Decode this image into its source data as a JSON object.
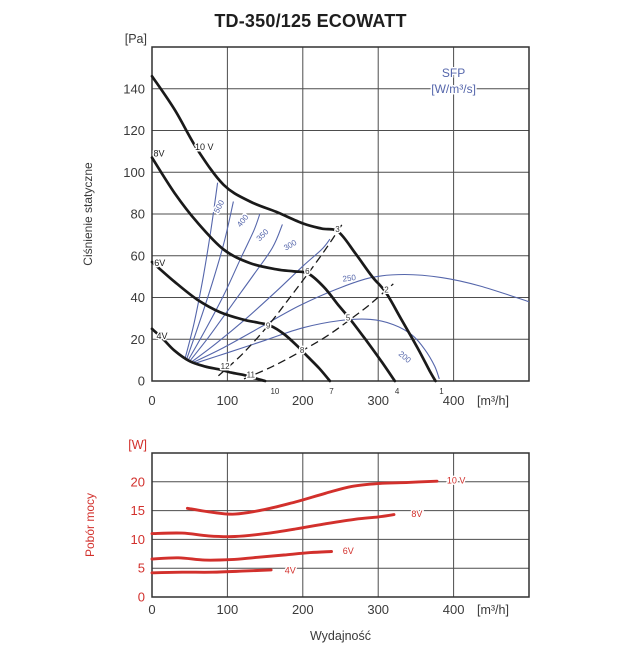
{
  "title": "TD-350/125 ECOWATT",
  "colors": {
    "fan_curve": "#1a1a1a",
    "sfp_blue": "#5566ab",
    "power_red": "#d2302c",
    "grid": "#4d4d4d",
    "border": "#303030",
    "tick_text": "#3a3a3a"
  },
  "chart_data": [
    {
      "type": "line",
      "name": "static-pressure-chart",
      "ylabel": "Ciśnienie statyczne",
      "y_unit": "[Pa]",
      "x_unit": "[m³/h]",
      "xlim": [
        0,
        500
      ],
      "ylim": [
        0,
        160
      ],
      "x_ticks": [
        0,
        100,
        200,
        300,
        400
      ],
      "y_ticks": [
        0,
        20,
        40,
        60,
        80,
        100,
        120,
        140
      ],
      "x_grid_step": 100,
      "y_grid_step": 20,
      "grid": true,
      "legend": {
        "title": "SFP",
        "unit": "[W/m³/s]",
        "position": "top-right"
      },
      "series": [
        {
          "name": "10 V",
          "points": [
            [
              0,
              146
            ],
            [
              30,
              130
            ],
            [
              60,
              111
            ],
            [
              95,
              94
            ],
            [
              130,
              86
            ],
            [
              165,
              81
            ],
            [
              200,
              75.5
            ],
            [
              225,
              73
            ],
            [
              247,
              71.5
            ],
            [
              270,
              61
            ],
            [
              292,
              50
            ],
            [
              310,
              42.5
            ],
            [
              330,
              30
            ],
            [
              352,
              16
            ],
            [
              368,
              5
            ],
            [
              376,
              0
            ]
          ]
        },
        {
          "name": "8V",
          "points": [
            [
              0,
              107
            ],
            [
              30,
              90
            ],
            [
              60,
              76
            ],
            [
              95,
              63
            ],
            [
              130,
              56.5
            ],
            [
              165,
              53.5
            ],
            [
              188,
              52.5
            ],
            [
              207,
              51.5
            ],
            [
              228,
              45
            ],
            [
              248,
              36
            ],
            [
              263,
              29.5
            ],
            [
              285,
              19
            ],
            [
              305,
              9
            ],
            [
              322,
              0
            ]
          ]
        },
        {
          "name": "6V",
          "points": [
            [
              0,
              57
            ],
            [
              30,
              47.5
            ],
            [
              60,
              39
            ],
            [
              90,
              33
            ],
            [
              120,
              29.5
            ],
            [
              140,
              28
            ],
            [
              157,
              26.5
            ],
            [
              175,
              22.5
            ],
            [
              192,
              17
            ],
            [
              207,
              11.5
            ],
            [
              222,
              6
            ],
            [
              236,
              0
            ]
          ]
        },
        {
          "name": "4V",
          "points": [
            [
              0,
              25
            ],
            [
              15,
              20
            ],
            [
              30,
              14.5
            ],
            [
              50,
              9.5
            ],
            [
              70,
              7
            ],
            [
              90,
              5.5
            ],
            [
              105,
              4
            ],
            [
              120,
              3
            ],
            [
              135,
              1.5
            ],
            [
              150,
              0
            ]
          ]
        }
      ],
      "curve_labels": [
        {
          "text": "10 V",
          "x": 57,
          "y": 112
        },
        {
          "text": "8V",
          "x": 2,
          "y": 109
        },
        {
          "text": "6V",
          "x": 3,
          "y": 56.5
        },
        {
          "text": "4V",
          "x": 6,
          "y": 21.5
        }
      ],
      "sfp_curves": [
        {
          "label": "",
          "points": [
            [
              44,
              11
            ],
            [
              56,
              28
            ],
            [
              68,
              50
            ],
            [
              78,
              72
            ],
            [
              87,
              95
            ]
          ]
        },
        {
          "label": "500",
          "points": [
            [
              46,
              10.5
            ],
            [
              62,
              27
            ],
            [
              80,
              47
            ],
            [
              96,
              67
            ],
            [
              108,
              86
            ]
          ]
        },
        {
          "label": "400",
          "points": [
            [
              48,
              10
            ],
            [
              70,
              24
            ],
            [
              95,
              41
            ],
            [
              118,
              59
            ],
            [
              135,
              72
            ],
            [
              143,
              80
            ]
          ]
        },
        {
          "label": "350",
          "points": [
            [
              50,
              9.5
            ],
            [
              75,
              21
            ],
            [
              105,
              36
            ],
            [
              135,
              51
            ],
            [
              160,
              64
            ],
            [
              173,
              75
            ]
          ]
        },
        {
          "label": "300",
          "points": [
            [
              52,
              9
            ],
            [
              85,
              18
            ],
            [
              125,
              30
            ],
            [
              165,
              43
            ],
            [
              200,
              55
            ],
            [
              225,
              63
            ],
            [
              236,
              68
            ]
          ]
        },
        {
          "label": "250",
          "points": [
            [
              54,
              8.8
            ],
            [
              95,
              16
            ],
            [
              145,
              26
            ],
            [
              195,
              36
            ],
            [
              245,
              44
            ],
            [
              290,
              49.5
            ],
            [
              335,
              51
            ],
            [
              385,
              49.5
            ],
            [
              435,
              45.5
            ],
            [
              500,
              38
            ]
          ]
        },
        {
          "label": "200",
          "points": [
            [
              57,
              8.5
            ],
            [
              100,
              13.5
            ],
            [
              150,
              19.5
            ],
            [
              200,
              25.5
            ],
            [
              250,
              29
            ],
            [
              290,
              29.5
            ],
            [
              320,
              27
            ],
            [
              345,
              22
            ],
            [
              362,
              15
            ],
            [
              375,
              7
            ],
            [
              381,
              1
            ]
          ]
        }
      ],
      "sfp_labels": [
        {
          "text": "500",
          "x": 92,
          "y": 83,
          "rot": -62
        },
        {
          "text": "400",
          "x": 123,
          "y": 76,
          "rot": -52
        },
        {
          "text": "350",
          "x": 149,
          "y": 69,
          "rot": -44
        },
        {
          "text": "300",
          "x": 185,
          "y": 64,
          "rot": -30
        },
        {
          "text": "250",
          "x": 262,
          "y": 48,
          "rot": -7
        },
        {
          "text": "200",
          "x": 333,
          "y": 10.5,
          "rot": 40
        }
      ],
      "dashed_lines": [
        {
          "points": [
            [
              88,
              2.5
            ],
            [
              120,
              13
            ],
            [
              155,
              27
            ],
            [
              185,
              41
            ],
            [
              207,
              51.5
            ],
            [
              230,
              63
            ],
            [
              254,
              76
            ]
          ]
        },
        {
          "points": [
            [
              122,
              1
            ],
            [
              160,
              7
            ],
            [
              199,
              14.5
            ],
            [
              232,
              21.5
            ],
            [
              263,
              29.5
            ],
            [
              290,
              37
            ],
            [
              320,
              46.5
            ]
          ]
        }
      ],
      "point_labels": [
        {
          "text": "1",
          "x": 384,
          "y": -5
        },
        {
          "text": "2",
          "x": 311,
          "y": 43.5
        },
        {
          "text": "3",
          "x": 246,
          "y": 72.5
        },
        {
          "text": "4",
          "x": 325,
          "y": -5
        },
        {
          "text": "5",
          "x": 260,
          "y": 30.2
        },
        {
          "text": "6",
          "x": 206,
          "y": 52.5
        },
        {
          "text": "7",
          "x": 238,
          "y": -5
        },
        {
          "text": "8",
          "x": 199,
          "y": 14.6
        },
        {
          "text": "9",
          "x": 154,
          "y": 26.3
        },
        {
          "text": "10",
          "x": 163,
          "y": -5
        },
        {
          "text": "11",
          "x": 131,
          "y": 2.8
        },
        {
          "text": "12",
          "x": 97,
          "y": 7
        }
      ]
    },
    {
      "type": "line",
      "name": "power-consumption-chart",
      "ylabel": "Pobór mocy",
      "y_unit": "[W]",
      "x_unit": "[m³/h]",
      "xlabel": "Wydajność",
      "xlim": [
        0,
        500
      ],
      "ylim": [
        0,
        25
      ],
      "x_ticks": [
        0,
        100,
        200,
        300,
        400
      ],
      "y_ticks": [
        0,
        5,
        10,
        15,
        20
      ],
      "x_grid_step": 100,
      "y_grid_step": 5,
      "grid": true,
      "series": [
        {
          "name": "10 V",
          "points": [
            [
              47,
              15.4
            ],
            [
              80,
              14.7
            ],
            [
              110,
              14.4
            ],
            [
              150,
              15.2
            ],
            [
              190,
              16.5
            ],
            [
              230,
              18
            ],
            [
              265,
              19.2
            ],
            [
              300,
              19.7
            ],
            [
              340,
              19.9
            ],
            [
              378,
              20.1
            ]
          ],
          "label_at": [
            391,
            20.2
          ]
        },
        {
          "name": "8V",
          "points": [
            [
              0,
              11
            ],
            [
              40,
              11.1
            ],
            [
              75,
              10.6
            ],
            [
              110,
              10.5
            ],
            [
              150,
              11
            ],
            [
              190,
              11.8
            ],
            [
              230,
              12.7
            ],
            [
              270,
              13.5
            ],
            [
              300,
              13.9
            ],
            [
              321,
              14.3
            ]
          ],
          "label_at": [
            344,
            14.4
          ]
        },
        {
          "name": "6V",
          "points": [
            [
              0,
              6.6
            ],
            [
              35,
              6.8
            ],
            [
              70,
              6.4
            ],
            [
              105,
              6.5
            ],
            [
              140,
              6.9
            ],
            [
              175,
              7.3
            ],
            [
              210,
              7.7
            ],
            [
              238,
              7.9
            ]
          ],
          "label_at": [
            253,
            8.0
          ]
        },
        {
          "name": "4V",
          "points": [
            [
              0,
              4.2
            ],
            [
              40,
              4.3
            ],
            [
              80,
              4.3
            ],
            [
              120,
              4.5
            ],
            [
              158,
              4.7
            ]
          ],
          "label_at": [
            176,
            4.6
          ]
        }
      ]
    }
  ]
}
